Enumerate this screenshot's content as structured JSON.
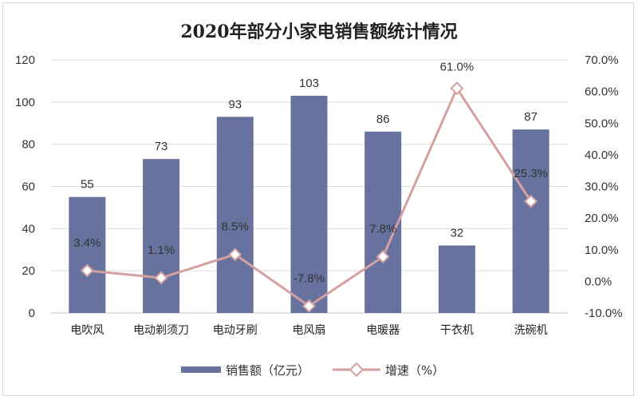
{
  "chart_data": {
    "type": "bar",
    "title": "2020年部分小家电销售额统计情况",
    "categories": [
      "电吹风",
      "电动剃须刀",
      "电动牙刷",
      "电风扇",
      "电暖器",
      "干衣机",
      "洗碗机"
    ],
    "series": [
      {
        "name": "销售额（亿元）",
        "type": "bar",
        "axis": "left",
        "color": "#67739e",
        "values": [
          55,
          73,
          93,
          103,
          86,
          32,
          87
        ],
        "labels": [
          "55",
          "73",
          "93",
          "103",
          "86",
          "32",
          "87"
        ]
      },
      {
        "name": "增速（%）",
        "type": "line",
        "axis": "right",
        "color": "#d4a0a0",
        "values": [
          3.4,
          1.1,
          8.5,
          -7.8,
          7.8,
          61.0,
          25.3
        ],
        "labels": [
          "3.4%",
          "1.1%",
          "8.5%",
          "-7.8%",
          "7.8%",
          "61.0%",
          "25.3%"
        ]
      }
    ],
    "y_left": {
      "min": 0,
      "max": 120,
      "ticks": [
        "0",
        "20",
        "40",
        "60",
        "80",
        "100",
        "120"
      ]
    },
    "y_right": {
      "min": -10,
      "max": 70,
      "ticks": [
        "-10.0%",
        "0.0%",
        "10.0%",
        "20.0%",
        "30.0%",
        "40.0%",
        "50.0%",
        "60.0%",
        "70.0%"
      ]
    },
    "grid": true,
    "legend_position": "bottom"
  }
}
